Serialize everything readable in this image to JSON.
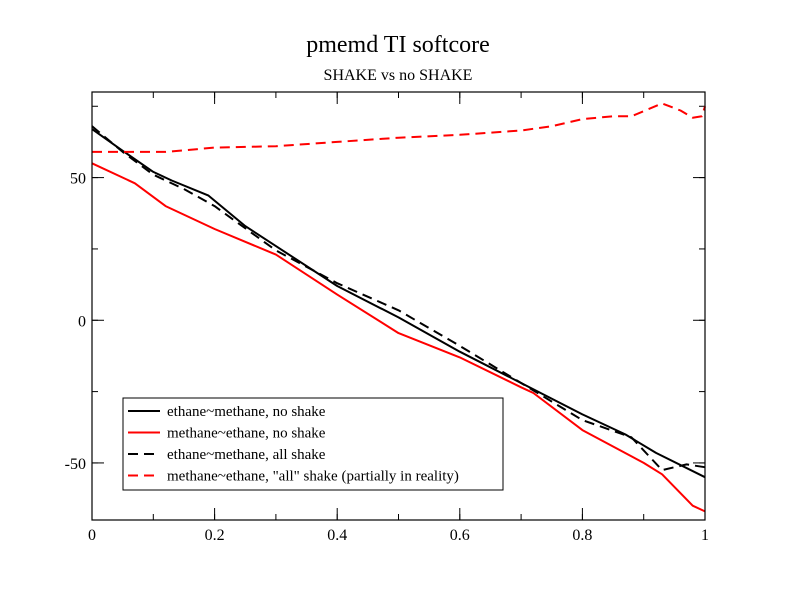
{
  "chart_data": {
    "type": "line",
    "title": "pmemd TI softcore",
    "subtitle": "SHAKE vs no SHAKE",
    "xlabel": "",
    "ylabel": "",
    "xlim": [
      0,
      1
    ],
    "ylim": [
      -70,
      80
    ],
    "x_ticks": [
      0,
      0.2,
      0.4,
      0.6,
      0.8,
      1
    ],
    "x_tick_labels": [
      "0",
      "0.2",
      "0.4",
      "0.6",
      "0.8",
      "1"
    ],
    "y_ticks": [
      50,
      0,
      -50
    ],
    "y_tick_labels": [
      "50",
      "0",
      "-50"
    ],
    "x_minor_step": 0.1,
    "y_minor_step": 25,
    "grid": false,
    "legend_position": "bottom-left",
    "series": [
      {
        "name": "ethane~methane, no shake",
        "color": "#000000",
        "dash": "solid",
        "x": [
          0,
          0.05,
          0.1,
          0.13,
          0.19,
          0.25,
          0.3,
          0.4,
          0.5,
          0.6,
          0.7,
          0.8,
          0.87,
          0.92,
          1.0
        ],
        "y": [
          67,
          59.4,
          52,
          49,
          43.7,
          33,
          26,
          12,
          1,
          -11,
          -22,
          -33,
          -40,
          -46.5,
          -55
        ]
      },
      {
        "name": "methane~ethane, no shake",
        "color": "#ff0000",
        "dash": "solid",
        "x": [
          0,
          0.07,
          0.12,
          0.2,
          0.3,
          0.4,
          0.5,
          0.6,
          0.7,
          0.72,
          0.8,
          0.9,
          0.93,
          0.98,
          1.0
        ],
        "y": [
          55,
          48,
          40,
          32,
          23,
          9,
          -4.5,
          -13,
          -23.5,
          -25.5,
          -38.5,
          -50,
          -54,
          -65,
          -67
        ]
      },
      {
        "name": "ethane~methane, all shake",
        "color": "#000000",
        "dash": "dashed",
        "x": [
          0,
          0.05,
          0.1,
          0.15,
          0.2,
          0.3,
          0.4,
          0.5,
          0.6,
          0.7,
          0.8,
          0.88,
          0.93,
          0.97,
          1.0
        ],
        "y": [
          68,
          59,
          51,
          46,
          40,
          24.5,
          13,
          3.5,
          -9,
          -22,
          -35,
          -41,
          -52.5,
          -50.5,
          -51.5
        ]
      },
      {
        "name": "methane~ethane, \"all\" shake (partially in reality)",
        "color": "#ff0000",
        "dash": "dashed",
        "x": [
          0,
          0.05,
          0.12,
          0.2,
          0.3,
          0.4,
          0.5,
          0.6,
          0.7,
          0.75,
          0.8,
          0.85,
          0.88,
          0.93,
          0.96,
          0.98,
          0.995,
          1.0
        ],
        "y": [
          59,
          59,
          59,
          60.5,
          61,
          62.5,
          64,
          65,
          66.5,
          68,
          70.5,
          71.5,
          71.5,
          76,
          73.5,
          71,
          71.5,
          75
        ]
      }
    ]
  }
}
